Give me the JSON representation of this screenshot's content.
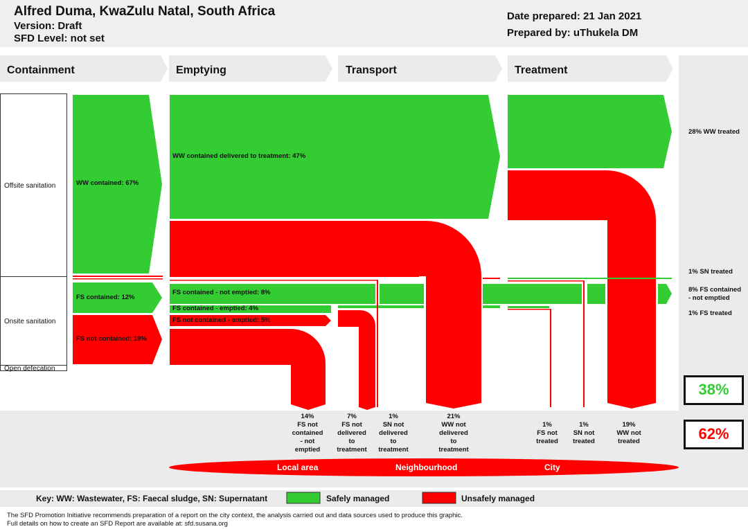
{
  "header": {
    "title": "Alfred Duma, KwaZulu Natal, South Africa",
    "version": "Version: Draft",
    "sfd_level": "SFD Level: not set",
    "date_prepared": "Date prepared: 21 Jan 2021",
    "prepared_by": "Prepared by: uThukela DM"
  },
  "sections": [
    "Containment",
    "Emptying",
    "Transport",
    "Treatment"
  ],
  "rows": {
    "offsite": "Offsite sanitation",
    "onsite": "Onsite sanitation",
    "open": "Open defecation"
  },
  "flow_labels": {
    "ww_contained": "WW contained: 67%",
    "ww_delivered": "WW contained delivered to treatment: 47%",
    "fs_contained": "FS contained: 12%",
    "fs_not_contained": "FS not contained: 19%",
    "fs_not_emptied": "FS contained - not emptied: 8%",
    "fs_emptied": "FS contained - emptied: 4%",
    "fs_nc_emptied": "FS not contained - emptied: 5%"
  },
  "right_labels": {
    "ww_treated": "28% WW treated",
    "sn_treated": "1% SN treated",
    "fs_not_emptied_line1": "8% FS contained",
    "fs_not_emptied_line2": "- not emptied",
    "fs_treated": "1% FS treated"
  },
  "bottom_labels": {
    "b1": [
      "14%",
      "FS not",
      "contained",
      "- not",
      "emptied"
    ],
    "b2": [
      "7%",
      "FS not",
      "delivered",
      "to",
      "treatment"
    ],
    "b3": [
      "1%",
      "SN not",
      "delivered",
      "to",
      "treatment"
    ],
    "b4": [
      "21%",
      "WW not",
      "delivered",
      "to",
      "treatment"
    ],
    "b5": [
      "1%",
      "FS not",
      "treated"
    ],
    "b6": [
      "1%",
      "SN not",
      "treated"
    ],
    "b7": [
      "19%",
      "WW not",
      "treated"
    ]
  },
  "totals": {
    "safe": "38%",
    "unsafe": "62%"
  },
  "areas": [
    "Local area",
    "Neighbourhood",
    "City"
  ],
  "key": {
    "abbrev": "Key: WW: Wastewater, FS: Faecal sludge, SN: Supernatant",
    "safe": "Safely managed",
    "unsafe": "Unsafely managed"
  },
  "footer": {
    "line1": "The SFD Promotion Initiative recommends preparation of a report on the city context, the analysis carried out and data sources used to produce this graphic.",
    "line2": "Full details on how to create an SFD Report are available at: sfd.susana.org"
  },
  "colors": {
    "safe": "#33cc33",
    "unsafe": "#ff0000",
    "panel": "#ebebeb"
  }
}
